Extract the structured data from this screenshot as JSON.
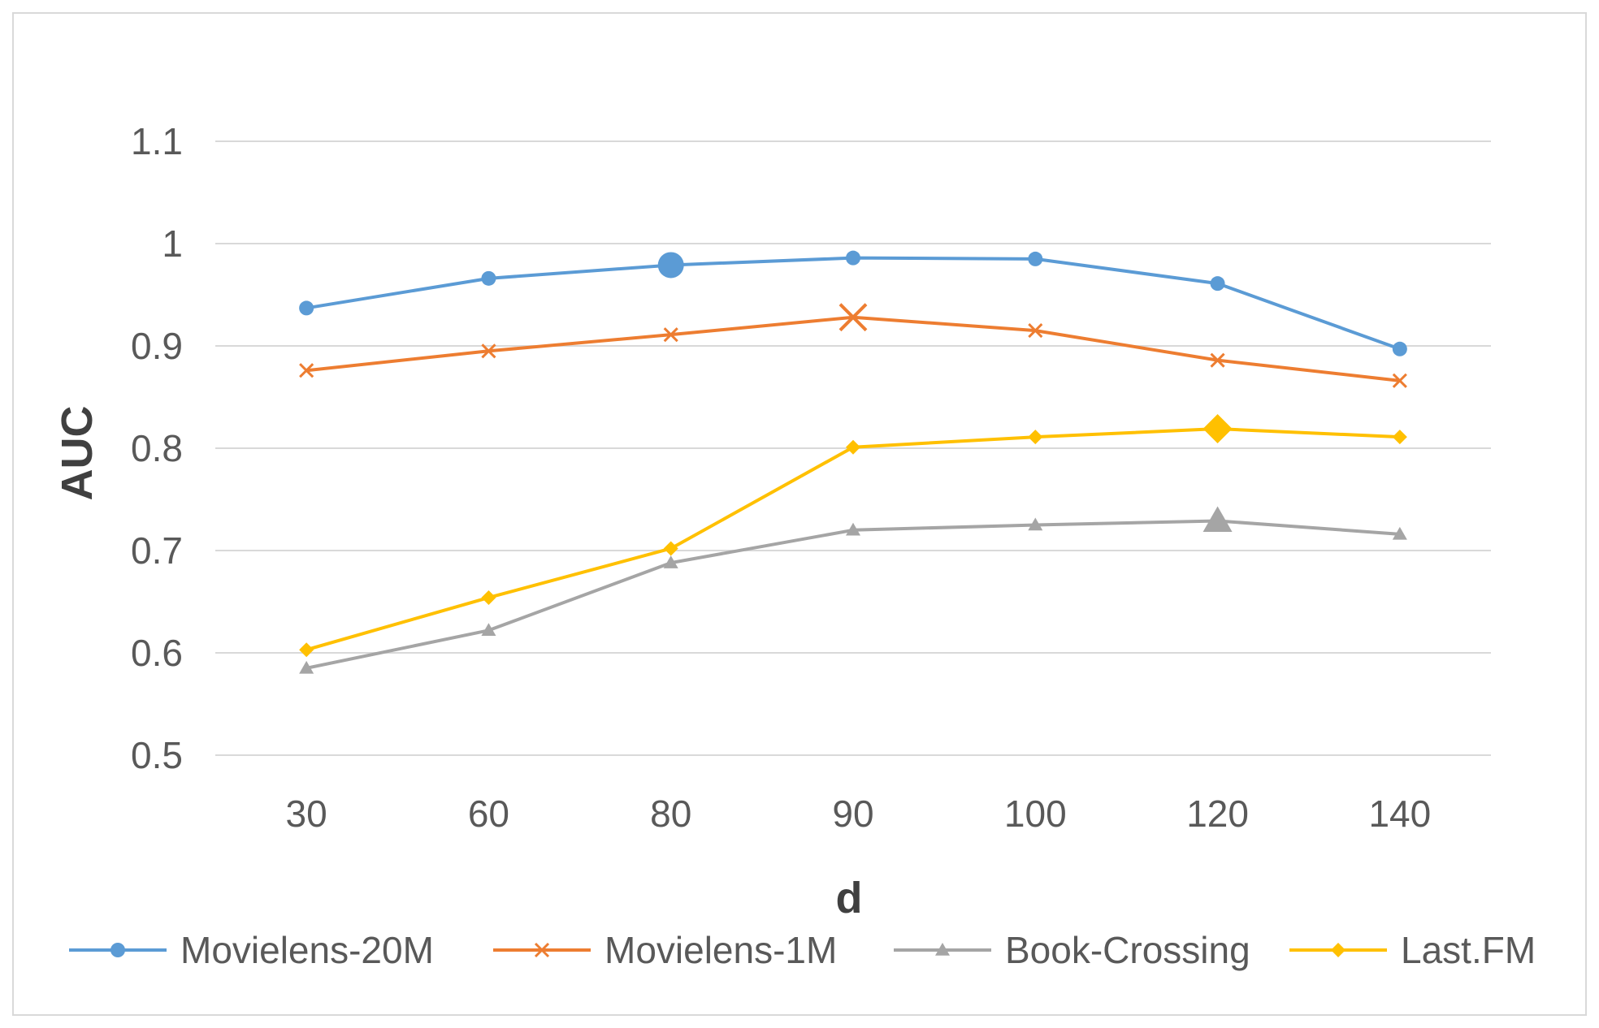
{
  "chart_data": {
    "type": "line",
    "title": "",
    "xlabel": "d",
    "ylabel": "AUC",
    "categories": [
      "30",
      "60",
      "80",
      "90",
      "100",
      "120",
      "140"
    ],
    "ylim": [
      0.5,
      1.1
    ],
    "yticks": [
      "0.5",
      "0.6",
      "0.7",
      "0.8",
      "0.9",
      "1",
      "1.1"
    ],
    "grid": true,
    "legend_position": "bottom",
    "series": [
      {
        "name": "Movielens-20M",
        "color": "#5B9BD5",
        "marker": "circle",
        "values": [
          0.937,
          0.966,
          0.979,
          0.986,
          0.985,
          0.961,
          0.897
        ],
        "highlight_index": 2
      },
      {
        "name": "Movielens-1M",
        "color": "#ED7D31",
        "marker": "x",
        "values": [
          0.876,
          0.895,
          0.911,
          0.928,
          0.915,
          0.886,
          0.866
        ],
        "highlight_index": 3
      },
      {
        "name": "Book-Crossing",
        "color": "#A5A5A5",
        "marker": "triangle",
        "values": [
          0.585,
          0.622,
          0.688,
          0.72,
          0.725,
          0.729,
          0.716
        ],
        "highlight_index": 5
      },
      {
        "name": "Last.FM",
        "color": "#FFC000",
        "marker": "diamond",
        "values": [
          0.603,
          0.654,
          0.702,
          0.801,
          0.811,
          0.819,
          0.811
        ],
        "highlight_index": 5
      }
    ]
  }
}
